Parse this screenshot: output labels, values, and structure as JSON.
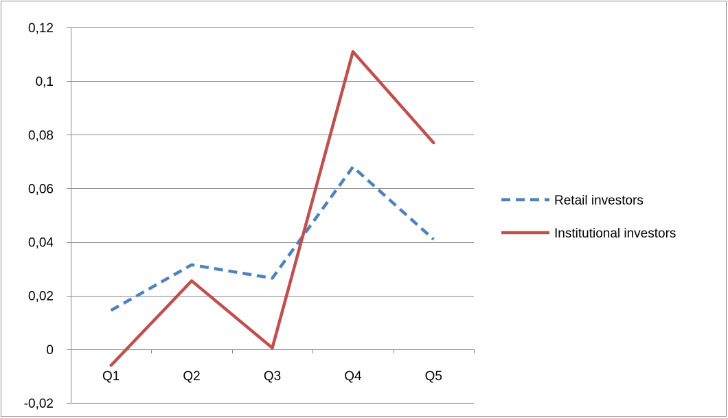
{
  "chart_data": {
    "type": "line",
    "title": "",
    "xlabel": "",
    "ylabel": "",
    "categories": [
      "Q1",
      "Q2",
      "Q3",
      "Q4",
      "Q5"
    ],
    "ylim": [
      -0.02,
      0.12
    ],
    "y_ticks": [
      -0.02,
      0,
      0.02,
      0.04,
      0.06,
      0.08,
      0.1,
      0.12
    ],
    "y_tick_labels": [
      "-0,02",
      "0",
      "0,02",
      "0,04",
      "0,06",
      "0,08",
      "0,1",
      "0,12"
    ],
    "grid": "horizontal",
    "legend_position": "right",
    "series": [
      {
        "name": "Retail investors",
        "values": [
          0.0145,
          0.0315,
          0.0265,
          0.068,
          0.041
        ],
        "color": "#4F81BD",
        "line_style": "dashed"
      },
      {
        "name": "Institutional investors",
        "values": [
          -0.006,
          0.0255,
          0.0005,
          0.111,
          0.077
        ],
        "color": "#C0504D",
        "line_style": "solid"
      }
    ]
  }
}
